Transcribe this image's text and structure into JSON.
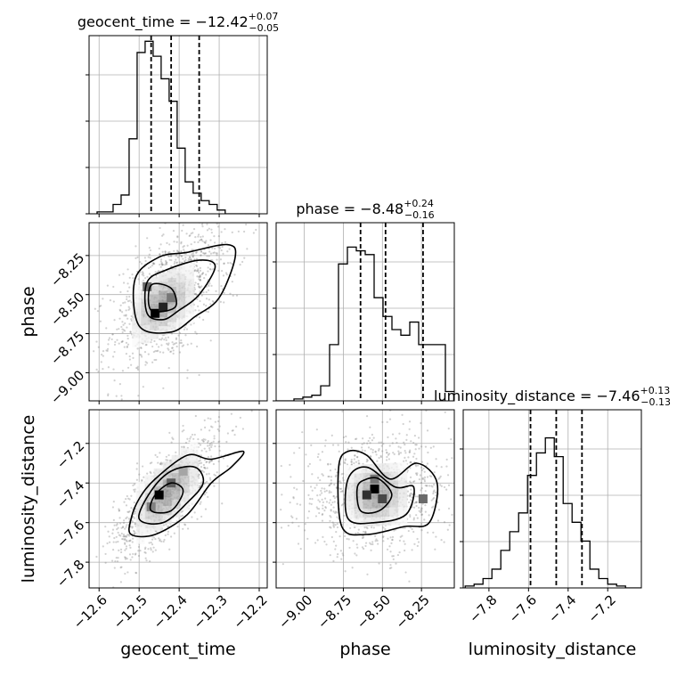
{
  "chart_data": {
    "type": "corner",
    "parameters": [
      "geocent_time",
      "phase",
      "luminosity_distance"
    ],
    "axis_labels": {
      "x": [
        "geocent_time",
        "phase",
        "luminosity_distance"
      ],
      "y": [
        "phase",
        "luminosity_distance"
      ]
    },
    "ranges": {
      "geocent_time": [
        -12.625,
        -12.18
      ],
      "phase": [
        -9.18,
        -8.04
      ],
      "luminosity_distance": [
        -7.93,
        -7.03
      ]
    },
    "ticks": {
      "geocent_time": [
        -12.6,
        -12.5,
        -12.4,
        -12.3,
        -12.2
      ],
      "phase": [
        -9.0,
        -8.75,
        -8.5,
        -8.25
      ],
      "luminosity_distance": [
        -7.8,
        -7.6,
        -7.4,
        -7.2
      ]
    },
    "tick_labels": {
      "geocent_time": [
        "−12.6",
        "−12.5",
        "−12.4",
        "−12.3",
        "−12.2"
      ],
      "phase_x": [
        "−9.00",
        "−8.75",
        "−8.50",
        "−8.25"
      ],
      "phase_y": [
        "−8.25",
        "−8.50",
        "−8.75",
        "−9.00"
      ],
      "luminosity_distance": [
        "−7.8",
        "−7.6",
        "−7.4",
        "−7.2"
      ]
    },
    "titles": [
      {
        "param": "geocent_time",
        "main": "geocent_time = −12.42",
        "sup": "+0.07",
        "sub": "−0.05"
      },
      {
        "param": "phase",
        "main": "phase = −8.48",
        "sup": "+0.24",
        "sub": "−0.16"
      },
      {
        "param": "luminosity_distance",
        "main": "luminosity_distance = −7.46",
        "sup": "+0.13",
        "sub": "−0.13"
      }
    ],
    "quantiles": {
      "geocent_time": [
        -12.47,
        -12.42,
        -12.35
      ],
      "phase": [
        -8.64,
        -8.48,
        -8.24
      ],
      "luminosity_distance": [
        -7.59,
        -7.46,
        -7.33
      ]
    },
    "histograms": {
      "geocent_time": {
        "edges_start": -12.605,
        "bin_width": 0.02,
        "counts": [
          0.01,
          0.01,
          0.05,
          0.1,
          0.4,
          0.86,
          0.92,
          0.84,
          0.72,
          0.6,
          0.35,
          0.17,
          0.11,
          0.07,
          0.05,
          0.02,
          0.0,
          0.0,
          0.0,
          0.0
        ]
      },
      "phase": {
        "edges_start": -9.18,
        "bin_width": 0.057,
        "counts": [
          0.0,
          0.0,
          0.01,
          0.02,
          0.03,
          0.08,
          0.3,
          0.73,
          0.82,
          0.8,
          0.78,
          0.55,
          0.45,
          0.38,
          0.35,
          0.42,
          0.3,
          0.3,
          0.3,
          0.05
        ]
      },
      "luminosity_distance": {
        "edges_start": -7.92,
        "bin_width": 0.045,
        "counts": [
          0.01,
          0.02,
          0.05,
          0.1,
          0.2,
          0.3,
          0.4,
          0.6,
          0.72,
          0.8,
          0.7,
          0.45,
          0.35,
          0.25,
          0.1,
          0.05,
          0.02,
          0.01,
          0.0,
          0.0
        ]
      }
    },
    "pairs": [
      {
        "x": "geocent_time",
        "y": "phase",
        "center": [
          -12.44,
          -8.56
        ],
        "spread": [
          0.06,
          0.2
        ],
        "correlation": 0.45,
        "secondary_mode": [
          -12.36,
          -8.28
        ],
        "hot_cells": [
          [
            -12.46,
            -8.62,
            1.0
          ],
          [
            -12.44,
            -8.58,
            0.85
          ],
          [
            -12.48,
            -8.45,
            0.55
          ],
          [
            -12.42,
            -8.52,
            0.5
          ]
        ],
        "contour_levels": [
          [
            [
              -12.5,
              -8.7
            ],
            [
              -12.51,
              -8.4
            ],
            [
              -12.45,
              -8.26
            ],
            [
              -12.38,
              -8.23
            ],
            [
              -12.28,
              -8.18
            ],
            [
              -12.26,
              -8.26
            ],
            [
              -12.3,
              -8.52
            ],
            [
              -12.36,
              -8.64
            ],
            [
              -12.42,
              -8.74
            ]
          ],
          [
            [
              -12.48,
              -8.62
            ],
            [
              -12.48,
              -8.42
            ],
            [
              -12.43,
              -8.34
            ],
            [
              -12.35,
              -8.28
            ],
            [
              -12.31,
              -8.32
            ],
            [
              -12.35,
              -8.5
            ],
            [
              -12.4,
              -8.6
            ],
            [
              -12.44,
              -8.66
            ]
          ],
          [
            [
              -12.47,
              -8.6
            ],
            [
              -12.47,
              -8.44
            ],
            [
              -12.42,
              -8.46
            ],
            [
              -12.41,
              -8.58
            ]
          ]
        ]
      },
      {
        "x": "geocent_time",
        "y": "luminosity_distance",
        "center": [
          -12.43,
          -7.45
        ],
        "spread": [
          0.06,
          0.14
        ],
        "correlation": 0.75,
        "hot_cells": [
          [
            -12.45,
            -7.46,
            1.0
          ],
          [
            -12.42,
            -7.4,
            0.6
          ],
          [
            -12.47,
            -7.52,
            0.45
          ],
          [
            -12.39,
            -7.34,
            0.3
          ]
        ],
        "contour_levels": [
          [
            [
              -12.52,
              -7.58
            ],
            [
              -12.52,
              -7.66
            ],
            [
              -12.46,
              -7.66
            ],
            [
              -12.38,
              -7.56
            ],
            [
              -12.32,
              -7.4
            ],
            [
              -12.27,
              -7.32
            ],
            [
              -12.24,
              -7.24
            ],
            [
              -12.32,
              -7.28
            ],
            [
              -12.38,
              -7.26
            ],
            [
              -12.46,
              -7.38
            ],
            [
              -12.5,
              -7.48
            ]
          ],
          [
            [
              -12.5,
              -7.58
            ],
            [
              -12.44,
              -7.6
            ],
            [
              -12.38,
              -7.5
            ],
            [
              -12.34,
              -7.4
            ],
            [
              -12.36,
              -7.32
            ],
            [
              -12.42,
              -7.34
            ],
            [
              -12.47,
              -7.44
            ]
          ],
          [
            [
              -12.47,
              -7.54
            ],
            [
              -12.42,
              -7.54
            ],
            [
              -12.39,
              -7.44
            ],
            [
              -12.42,
              -7.4
            ],
            [
              -12.46,
              -7.46
            ]
          ]
        ]
      },
      {
        "x": "phase",
        "y": "luminosity_distance",
        "center": [
          -8.54,
          -7.46
        ],
        "spread": [
          0.22,
          0.13
        ],
        "correlation": 0.05,
        "hot_cells": [
          [
            -8.55,
            -7.43,
            1.0
          ],
          [
            -8.6,
            -7.46,
            0.8
          ],
          [
            -8.5,
            -7.48,
            0.7
          ],
          [
            -8.24,
            -7.48,
            0.55
          ],
          [
            -8.55,
            -7.38,
            0.5
          ]
        ],
        "contour_levels": [
          [
            [
              -8.78,
              -7.32
            ],
            [
              -8.76,
              -7.62
            ],
            [
              -8.6,
              -7.66
            ],
            [
              -8.36,
              -7.62
            ],
            [
              -8.2,
              -7.6
            ],
            [
              -8.15,
              -7.4
            ],
            [
              -8.28,
              -7.3
            ],
            [
              -8.45,
              -7.38
            ],
            [
              -8.6,
              -7.26
            ],
            [
              -8.72,
              -7.24
            ]
          ],
          [
            [
              -8.72,
              -7.38
            ],
            [
              -8.72,
              -7.58
            ],
            [
              -8.55,
              -7.6
            ],
            [
              -8.35,
              -7.56
            ],
            [
              -8.3,
              -7.42
            ],
            [
              -8.42,
              -7.42
            ],
            [
              -8.6,
              -7.32
            ]
          ],
          [
            [
              -8.66,
              -7.42
            ],
            [
              -8.64,
              -7.54
            ],
            [
              -8.52,
              -7.54
            ],
            [
              -8.44,
              -7.46
            ],
            [
              -8.52,
              -7.38
            ],
            [
              -8.6,
              -7.38
            ]
          ]
        ]
      }
    ]
  }
}
